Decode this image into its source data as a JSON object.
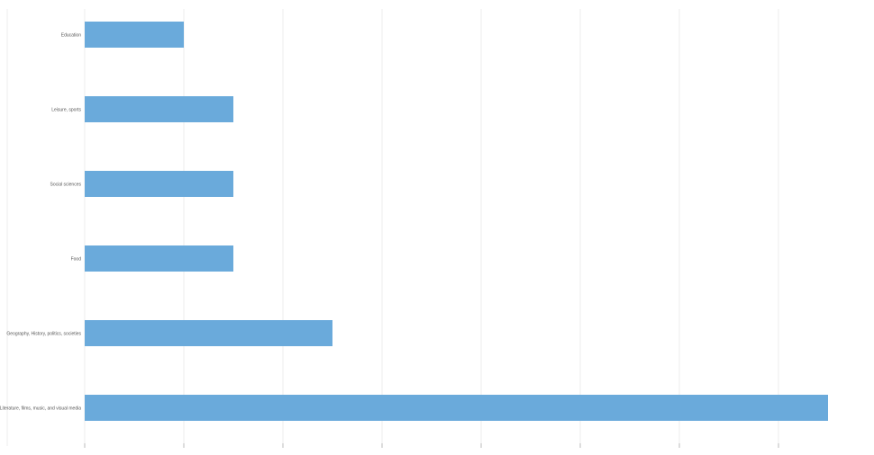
{
  "chart_data": {
    "type": "bar",
    "orientation": "horizontal",
    "title": "",
    "xlabel": "",
    "ylabel": "",
    "categories": [
      "Education",
      "Leisure, sports",
      "Social sciences",
      "Food",
      "Geography, History, politics, societies",
      "Literature, films, music, and visual media"
    ],
    "values": [
      1,
      1.5,
      1.5,
      1.5,
      2.5,
      7.5
    ],
    "xlim": [
      0,
      8
    ],
    "xticks": [
      0,
      1,
      2,
      3,
      4,
      5,
      6,
      7
    ],
    "grid": true,
    "legend": "none",
    "bar_color": "#6aaadb"
  }
}
